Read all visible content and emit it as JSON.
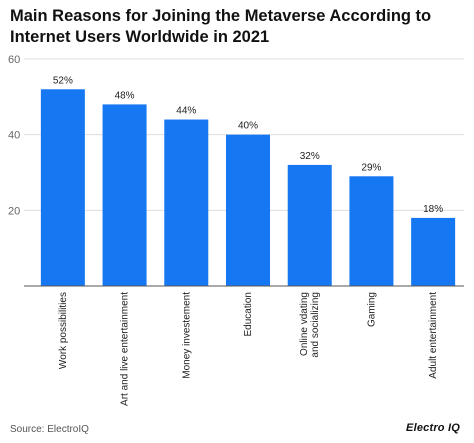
{
  "title": "Main Reasons for Joining the Metaverse According to Internet Users Worldwide in 2021",
  "source": "Source: ElectroIQ",
  "brand": "Electro IQ",
  "colors": {
    "bar": "#1677f2",
    "grid": "#dddddd",
    "axis": "#555555"
  },
  "chart_data": {
    "type": "bar",
    "title": "Main Reasons for Joining the Metaverse According to Internet Users Worldwide in 2021",
    "categories": [
      "Work possibilities",
      "Art and live entertainment",
      "Money investement",
      "Education",
      "Online vdating and socializing",
      "Gaming",
      "Adult entertainment"
    ],
    "values": [
      52,
      48,
      44,
      40,
      32,
      29,
      18
    ],
    "value_labels": [
      "52%",
      "48%",
      "44%",
      "40%",
      "32%",
      "29%",
      "18%"
    ],
    "ylim": [
      0,
      60
    ],
    "yticks": [
      20,
      40,
      60
    ],
    "grid": true,
    "xlabel": "",
    "ylabel": ""
  }
}
